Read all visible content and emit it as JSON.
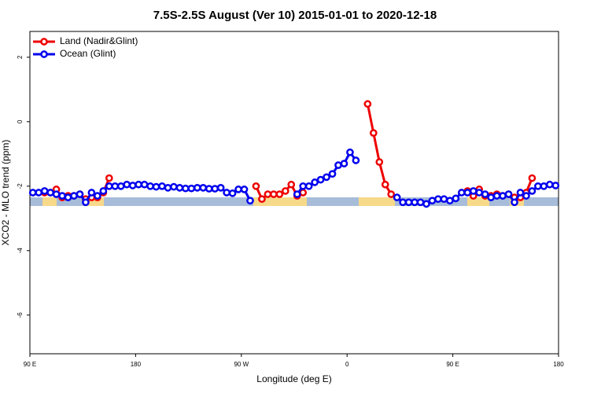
{
  "chart_data": {
    "type": "line",
    "title": "7.5S-2.5S August (Ver 10)   2015-01-01 to 2020-12-18",
    "xlabel": "Longitude (deg E)",
    "ylabel": "XCO2 - MLO trend (ppm)",
    "xlim": [
      -270,
      180
    ],
    "xticks": [
      {
        "value": -270,
        "label": "90 E"
      },
      {
        "value": -180,
        "label": "180"
      },
      {
        "value": -90,
        "label": "90 W"
      },
      0,
      {
        "value": 90,
        "label": "90 E"
      },
      {
        "value": 180,
        "label": "180"
      }
    ],
    "ylim": [
      -7.2,
      2.8
    ],
    "yticks": [
      -6,
      -4,
      -2,
      0,
      2
    ],
    "legend": "top-left",
    "x": [
      -267.5,
      -262.5,
      -257.5,
      -252.5,
      -247.5,
      -242.5,
      -237.5,
      -232.5,
      -227.5,
      -222.5,
      -217.5,
      -212.5,
      -207.5,
      -202.5,
      -197.5,
      -192.5,
      -187.5,
      -182.5,
      -177.5,
      -172.5,
      -167.5,
      -162.5,
      -157.5,
      -152.5,
      -147.5,
      -142.5,
      -137.5,
      -132.5,
      -127.5,
      -122.5,
      -117.5,
      -112.5,
      -107.5,
      -102.5,
      -97.5,
      -92.5,
      -87.5,
      -82.5,
      -77.5,
      -72.5,
      -67.5,
      -62.5,
      -57.5,
      -52.5,
      -47.5,
      -42.5,
      -37.5,
      -32.5,
      -27.5,
      -22.5,
      -17.5,
      -12.5,
      -7.5,
      -2.5,
      2.5,
      7.5,
      12.5,
      17.5,
      22.5,
      27.5,
      32.5,
      37.5,
      42.5,
      47.5,
      52.5,
      57.5,
      62.5,
      67.5,
      72.5,
      77.5,
      82.5,
      87.5,
      92.5,
      97.5,
      102.5,
      107.5,
      112.5,
      117.5,
      122.5,
      127.5,
      132.5,
      137.5,
      142.5,
      147.5,
      152.5,
      157.5,
      162.5,
      167.5,
      172.5,
      177.5
    ],
    "series": [
      {
        "name": "Land (Nadir&Glint)",
        "color": "#ee0000",
        "values": [
          null,
          null,
          -2.2,
          -2.2,
          -2.1,
          -2.35,
          -2.3,
          -2.3,
          -2.25,
          -2.4,
          -2.35,
          -2.35,
          -2.2,
          -1.75,
          null,
          null,
          null,
          null,
          null,
          null,
          null,
          null,
          null,
          null,
          null,
          null,
          null,
          null,
          null,
          null,
          null,
          null,
          null,
          null,
          null,
          null,
          null,
          null,
          -2.0,
          -2.4,
          -2.25,
          -2.25,
          -2.25,
          -2.15,
          -1.95,
          -2.3,
          -2.2,
          null,
          null,
          null,
          null,
          null,
          null,
          null,
          null,
          null,
          null,
          0.55,
          -0.35,
          -1.25,
          -1.95,
          -2.25,
          null,
          null,
          null,
          null,
          null,
          null,
          null,
          null,
          null,
          null,
          null,
          null,
          -2.15,
          -2.3,
          -2.1,
          -2.3,
          -2.3,
          -2.25,
          -2.3,
          -2.25,
          -2.35,
          -2.35,
          -2.2,
          -1.75,
          null,
          null,
          null,
          null
        ]
      },
      {
        "name": "Ocean (Glint)",
        "color": "#0000ee",
        "values": [
          -2.2,
          -2.2,
          -2.15,
          -2.2,
          -2.25,
          -2.3,
          -2.35,
          -2.3,
          -2.25,
          -2.5,
          -2.2,
          -2.3,
          -2.15,
          -2.0,
          -2.0,
          -2.0,
          -1.95,
          -1.98,
          -1.95,
          -1.95,
          -2.0,
          -2.02,
          -2.0,
          -2.05,
          -2.02,
          -2.05,
          -2.07,
          -2.07,
          -2.05,
          -2.05,
          -2.08,
          -2.08,
          -2.05,
          -2.2,
          -2.22,
          -2.1,
          -2.1,
          -2.45,
          null,
          null,
          null,
          null,
          null,
          null,
          null,
          -2.25,
          -2.0,
          -2.0,
          -1.88,
          -1.8,
          -1.72,
          -1.62,
          -1.35,
          -1.3,
          -0.95,
          -1.2,
          null,
          null,
          null,
          null,
          null,
          null,
          -2.35,
          -2.5,
          -2.5,
          -2.5,
          -2.5,
          -2.55,
          -2.45,
          -2.4,
          -2.4,
          -2.45,
          -2.38,
          -2.2,
          -2.2,
          -2.15,
          -2.2,
          -2.25,
          -2.35,
          -2.3,
          -2.3,
          -2.25,
          -2.5,
          -2.2,
          -2.3,
          -2.15,
          -2.0,
          -2.0,
          -1.95,
          -1.98
        ]
      }
    ]
  }
}
